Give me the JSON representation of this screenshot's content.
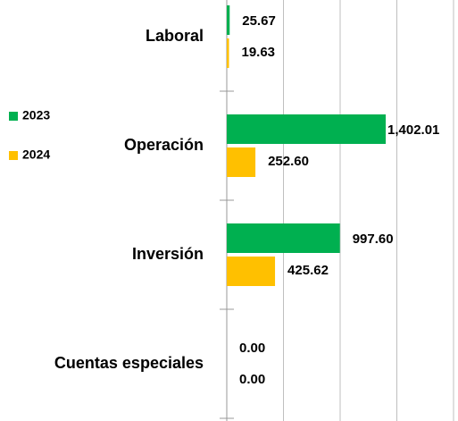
{
  "chart_data": {
    "type": "hbar",
    "categories": [
      "Laboral",
      "Operación",
      "Inversión",
      "Cuentas especiales"
    ],
    "series": [
      {
        "name": "2023",
        "color": "#00b050",
        "values": [
          25.67,
          1402.01,
          997.6,
          0
        ],
        "value_labels": [
          "25.67",
          "1,402.01",
          "997.60",
          "0.00"
        ]
      },
      {
        "name": "2024",
        "color": "#ffc000",
        "values": [
          19.63,
          252.6,
          425.62,
          0
        ],
        "value_labels": [
          "19.63",
          "252.60",
          "425.62",
          "0.00"
        ]
      }
    ],
    "xlim": [
      0,
      2000
    ],
    "xticks": [
      0,
      500,
      1000,
      1500,
      2000
    ],
    "grid": true
  }
}
